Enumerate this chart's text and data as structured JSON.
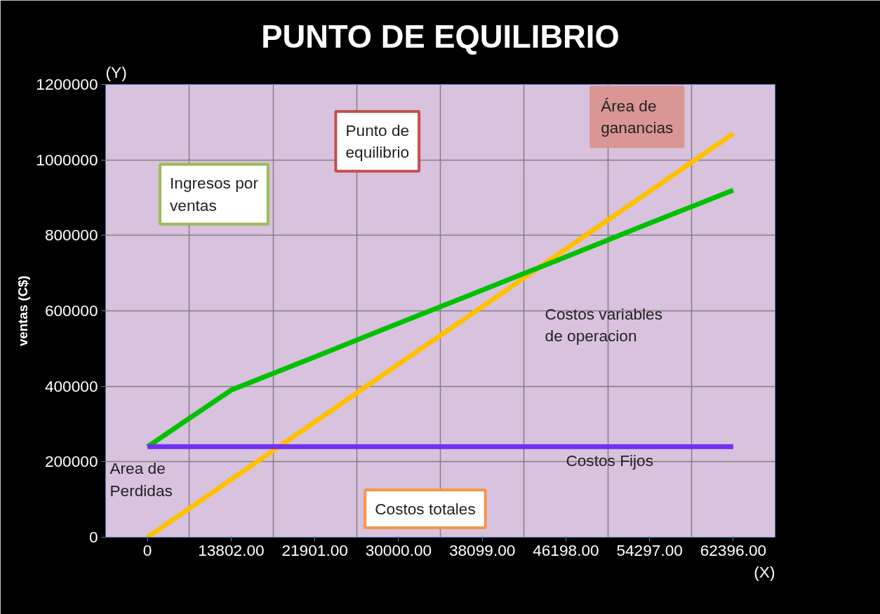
{
  "chart_data": {
    "type": "line",
    "title": "PUNTO DE EQUILIBRIO",
    "ylabel": "ventas (C$)",
    "categories": [
      "0",
      "13802.00",
      "21901.00",
      "30000.00",
      "38099.00",
      "46198.00",
      "54297.00",
      "62396.00"
    ],
    "series": [
      {
        "color": "#ffc000",
        "values": [
          0,
          153000,
          306000,
          459000,
          611000,
          764000,
          917000,
          1070000
        ]
      },
      {
        "color": "#00c000",
        "values": [
          240000,
          390000,
          478000,
          567000,
          655000,
          743000,
          832000,
          920000
        ]
      },
      {
        "color": "#7030f0",
        "values": [
          240000,
          240000,
          240000,
          240000,
          240000,
          240000,
          240000,
          240000
        ]
      }
    ],
    "ylim": [
      0,
      1200000
    ],
    "yticks": [
      0,
      200000,
      400000,
      600000,
      800000,
      1000000,
      1200000
    ],
    "grid": true,
    "marker": "none",
    "line_style": "solid",
    "annotations": [
      "(Y)",
      "(X)",
      "Área de\nganancias",
      "Punto de\nequilibrio",
      "Ingresos por\nventas",
      "Costos totales",
      "Area de\nPerdidas",
      "Costos variables\nde operacion",
      "Costos Fijos"
    ]
  }
}
